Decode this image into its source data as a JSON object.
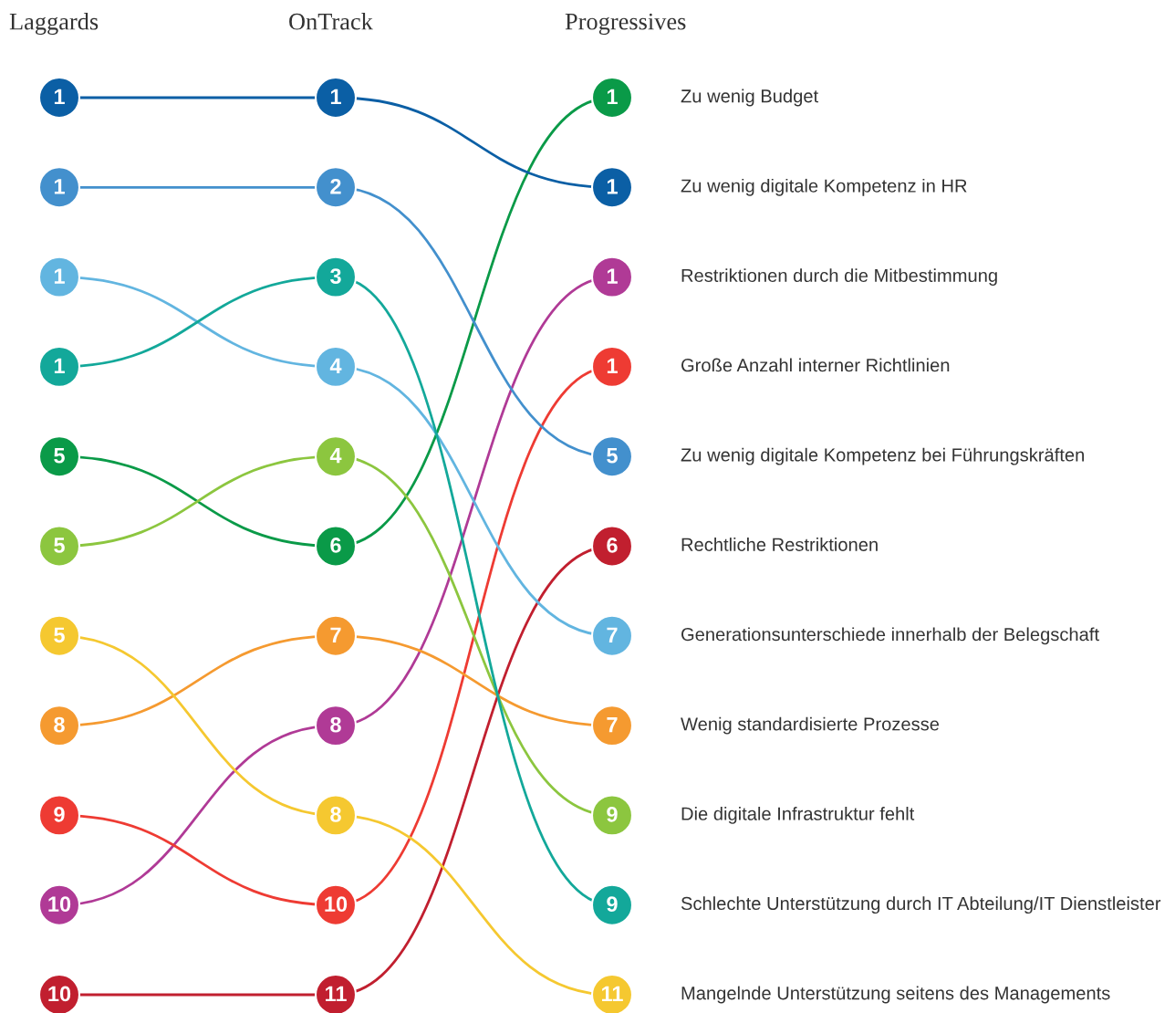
{
  "chart_data": {
    "type": "other",
    "categories": [
      "Laggards",
      "OnTrack",
      "Progressives"
    ],
    "data_labels": true,
    "series": [
      {
        "name": "Zu wenig Budget",
        "color": "#0a9a48",
        "values": [
          5,
          6,
          1
        ]
      },
      {
        "name": "Zu wenig digitale Kompetenz in HR",
        "color": "#0b5fa5",
        "values": [
          1,
          1,
          1
        ]
      },
      {
        "name": "Restriktionen durch die Mitbestimmung",
        "color": "#b03a96",
        "values": [
          10,
          8,
          1
        ]
      },
      {
        "name": "Große Anzahl interner Richtlinien",
        "color": "#ee3b33",
        "values": [
          9,
          10,
          1
        ]
      },
      {
        "name": "Zu wenig digitale Kompetenz bei Führungskräften",
        "color": "#4390cd",
        "values": [
          1,
          2,
          5
        ]
      },
      {
        "name": "Rechtliche Restriktionen",
        "color": "#c11f2f",
        "values": [
          10,
          11,
          6
        ]
      },
      {
        "name": "Generationsunterschiede innerhalb der Belegschaft",
        "color": "#62b5e0",
        "values": [
          1,
          4,
          7
        ]
      },
      {
        "name": "Wenig standardisierte Prozesse",
        "color": "#f59a30",
        "values": [
          8,
          7,
          7
        ]
      },
      {
        "name": "Die digitale Infrastruktur fehlt",
        "color": "#8cc63f",
        "values": [
          5,
          4,
          9
        ]
      },
      {
        "name": "Schlechte Unterstützung durch IT Abteilung/IT Dienstleister",
        "color": "#13a89a",
        "values": [
          1,
          3,
          9
        ]
      },
      {
        "name": "Mangelnde Unterstützung seitens des Managements",
        "color": "#f5c830",
        "values": [
          5,
          8,
          11
        ]
      }
    ]
  }
}
